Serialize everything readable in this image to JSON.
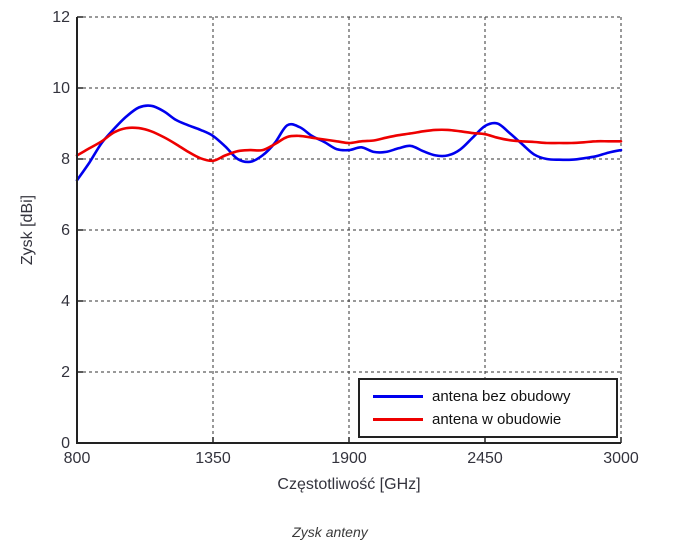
{
  "figure": {
    "caption": "Zysk anteny"
  },
  "legend": {
    "entries": [
      {
        "label": "antena bez obudowy",
        "color": "#0000ee"
      },
      {
        "label": "antena w obudowie",
        "color": "#ee0000"
      }
    ]
  },
  "chart_data": {
    "type": "line",
    "title": "",
    "xlabel": "Częstotliwość [GHz]",
    "ylabel": "Zysk [dBi]",
    "xlim": [
      800,
      3000
    ],
    "ylim": [
      0,
      12
    ],
    "x_ticks": [
      800,
      1350,
      1900,
      2450,
      3000
    ],
    "y_ticks": [
      0,
      2,
      4,
      6,
      8,
      10,
      12
    ],
    "grid": true,
    "grid_style": "dashed",
    "legend_position": "lower right",
    "x": [
      800,
      850,
      900,
      950,
      1000,
      1050,
      1100,
      1150,
      1200,
      1250,
      1300,
      1350,
      1400,
      1450,
      1500,
      1550,
      1600,
      1650,
      1700,
      1750,
      1800,
      1850,
      1900,
      1950,
      2000,
      2050,
      2100,
      2150,
      2200,
      2250,
      2300,
      2350,
      2400,
      2450,
      2500,
      2550,
      2600,
      2650,
      2700,
      2750,
      2800,
      2850,
      2900,
      2950,
      3000
    ],
    "series": [
      {
        "name": "antena bez obudowy",
        "color": "#0000ee",
        "values": [
          7.4,
          7.9,
          8.45,
          8.85,
          9.2,
          9.45,
          9.5,
          9.35,
          9.1,
          8.95,
          8.82,
          8.65,
          8.35,
          8.0,
          7.92,
          8.1,
          8.45,
          8.95,
          8.9,
          8.65,
          8.48,
          8.28,
          8.25,
          8.33,
          8.2,
          8.2,
          8.3,
          8.37,
          8.22,
          8.1,
          8.1,
          8.27,
          8.6,
          8.93,
          9.0,
          8.73,
          8.42,
          8.12,
          8.0,
          7.98,
          7.98,
          8.02,
          8.08,
          8.18,
          8.25
        ]
      },
      {
        "name": "antena w obudowie",
        "color": "#ee0000",
        "values": [
          8.1,
          8.3,
          8.5,
          8.75,
          8.87,
          8.87,
          8.78,
          8.62,
          8.42,
          8.2,
          8.02,
          7.95,
          8.1,
          8.22,
          8.25,
          8.25,
          8.42,
          8.62,
          8.65,
          8.6,
          8.55,
          8.5,
          8.45,
          8.5,
          8.52,
          8.6,
          8.67,
          8.72,
          8.78,
          8.82,
          8.82,
          8.78,
          8.73,
          8.7,
          8.6,
          8.53,
          8.5,
          8.48,
          8.45,
          8.45,
          8.45,
          8.47,
          8.5,
          8.5,
          8.5
        ]
      }
    ]
  }
}
